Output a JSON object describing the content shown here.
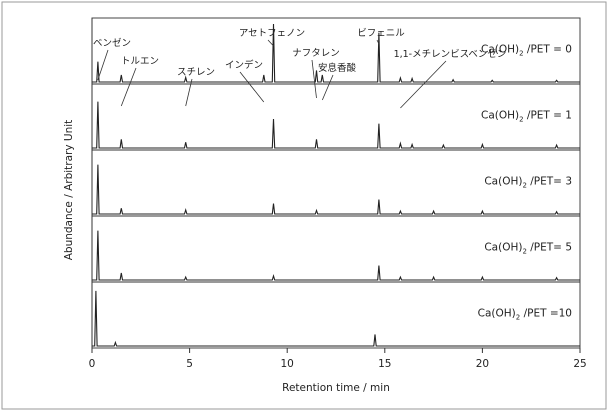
{
  "chart_data": {
    "type": "line",
    "xlabel": "Retention time / min",
    "ylabel": "Abundance / Arbitrary Unit",
    "xlim": [
      0,
      25
    ],
    "x_ticks": [
      "0",
      "5",
      "10",
      "15",
      "20",
      "25"
    ],
    "panels": [
      {
        "label": "Ca(OH)2 /PET = 0",
        "peaks": [
          {
            "rt": 0.3,
            "h": 0.35
          },
          {
            "rt": 1.5,
            "h": 0.12
          },
          {
            "rt": 4.8,
            "h": 0.08
          },
          {
            "rt": 8.8,
            "h": 0.12
          },
          {
            "rt": 9.3,
            "h": 1.0
          },
          {
            "rt": 11.5,
            "h": 0.2
          },
          {
            "rt": 11.8,
            "h": 0.12
          },
          {
            "rt": 14.7,
            "h": 0.85
          },
          {
            "rt": 15.8,
            "h": 0.07
          },
          {
            "rt": 16.4,
            "h": 0.06
          },
          {
            "rt": 18.5,
            "h": 0.04
          },
          {
            "rt": 20.5,
            "h": 0.03
          },
          {
            "rt": 23.8,
            "h": 0.03
          }
        ]
      },
      {
        "label": "Ca(OH)2 /PET = 1",
        "peaks": [
          {
            "rt": 0.3,
            "h": 0.8
          },
          {
            "rt": 1.5,
            "h": 0.15
          },
          {
            "rt": 4.8,
            "h": 0.1
          },
          {
            "rt": 9.3,
            "h": 0.5
          },
          {
            "rt": 11.5,
            "h": 0.15
          },
          {
            "rt": 14.7,
            "h": 0.42
          },
          {
            "rt": 15.8,
            "h": 0.08
          },
          {
            "rt": 16.4,
            "h": 0.06
          },
          {
            "rt": 18.0,
            "h": 0.05
          },
          {
            "rt": 20.0,
            "h": 0.06
          },
          {
            "rt": 23.8,
            "h": 0.05
          }
        ]
      },
      {
        "label": "Ca(OH)2 /PET= 3",
        "peaks": [
          {
            "rt": 0.3,
            "h": 0.85
          },
          {
            "rt": 1.5,
            "h": 0.1
          },
          {
            "rt": 4.8,
            "h": 0.07
          },
          {
            "rt": 9.3,
            "h": 0.18
          },
          {
            "rt": 11.5,
            "h": 0.06
          },
          {
            "rt": 14.7,
            "h": 0.25
          },
          {
            "rt": 15.8,
            "h": 0.05
          },
          {
            "rt": 17.5,
            "h": 0.05
          },
          {
            "rt": 20.0,
            "h": 0.05
          },
          {
            "rt": 23.8,
            "h": 0.04
          }
        ]
      },
      {
        "label": "Ca(OH)2 /PET= 5",
        "peaks": [
          {
            "rt": 0.3,
            "h": 0.85
          },
          {
            "rt": 1.5,
            "h": 0.12
          },
          {
            "rt": 4.8,
            "h": 0.05
          },
          {
            "rt": 9.3,
            "h": 0.07
          },
          {
            "rt": 14.7,
            "h": 0.25
          },
          {
            "rt": 15.8,
            "h": 0.05
          },
          {
            "rt": 17.5,
            "h": 0.05
          },
          {
            "rt": 20.0,
            "h": 0.05
          },
          {
            "rt": 23.8,
            "h": 0.04
          }
        ]
      },
      {
        "label": "Ca(OH)2 /PET =10",
        "peaks": [
          {
            "rt": 0.2,
            "h": 0.95
          },
          {
            "rt": 1.2,
            "h": 0.06
          },
          {
            "rt": 14.5,
            "h": 0.2
          }
        ]
      }
    ],
    "peak_labels": [
      {
        "text": "ベンゼン",
        "rt": 0.3
      },
      {
        "text": "トルエン",
        "rt": 1.5
      },
      {
        "text": "スチレン",
        "rt": 4.8
      },
      {
        "text": "インデン",
        "rt": 8.8
      },
      {
        "text": "アセトフェノン",
        "rt": 9.3
      },
      {
        "text": "ナフタレン",
        "rt": 11.5
      },
      {
        "text": "安息香酸",
        "rt": 11.8
      },
      {
        "text": "ビフェニル",
        "rt": 14.7
      },
      {
        "text": "1,1-メチレンビスベンゼン",
        "rt": 15.8
      }
    ]
  }
}
